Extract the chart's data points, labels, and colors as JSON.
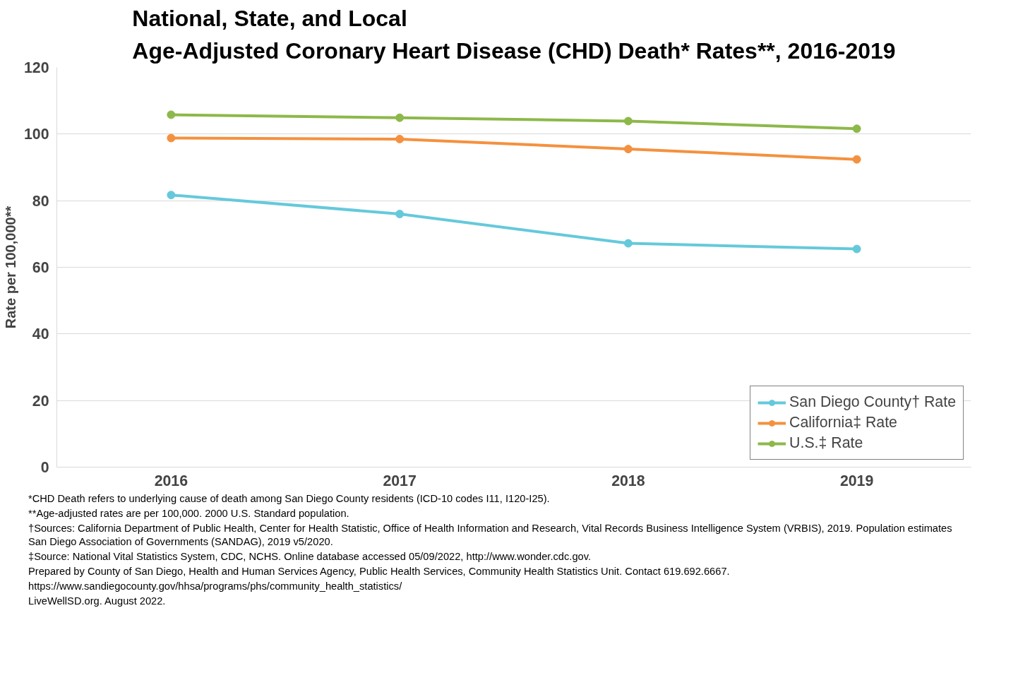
{
  "chart_data": {
    "type": "line",
    "title": "National, State, and Local\nAge-Adjusted Coronary Heart Disease (CHD) Death* Rates**, 2016-2019",
    "ylabel": "Rate per 100,000**",
    "categories": [
      "2016",
      "2017",
      "2018",
      "2019"
    ],
    "series": [
      {
        "name": "San Diego County† Rate",
        "color": "#65c9db",
        "values": [
          81.7,
          76.0,
          67.2,
          65.5
        ]
      },
      {
        "name": "California‡ Rate",
        "color": "#f4913f",
        "values": [
          98.8,
          98.5,
          95.5,
          92.4
        ]
      },
      {
        "name": "U.S.‡ Rate",
        "color": "#8db84a",
        "values": [
          105.8,
          104.9,
          103.9,
          101.6
        ]
      }
    ],
    "ylim": [
      0,
      120
    ],
    "yticks": [
      0,
      20,
      40,
      60,
      80,
      100,
      120
    ],
    "grid": "y",
    "legend": "bottom right",
    "marker": "circle",
    "line_style": "solid",
    "annotations": [
      "*CHD Death refers to underlying cause of death among San Diego County residents (ICD-10 codes I11, I120-I25).",
      "**Age-adjusted rates are per 100,000. 2000 U.S. Standard population.",
      "†Sources: California Department of Public Health, Center for Health Statistic, Office of Health Information and Research, Vital Records Business Intelligence System (VRBIS), 2019. Population estimates San Diego Association of Governments (SANDAG), 2019 v5/2020.",
      "‡Source: National Vital Statistics System, CDC, NCHS. Online database accessed 05/09/2022, http://www.wonder.cdc.gov.",
      "Prepared by County of San Diego, Health and Human Services Agency, Public Health Services, Community Health Statistics Unit. Contact 619.692.6667.",
      "https://www.sandiegocounty.gov/hhsa/programs/phs/community_health_statistics/",
      "LiveWellSD.org. August 2022."
    ]
  }
}
